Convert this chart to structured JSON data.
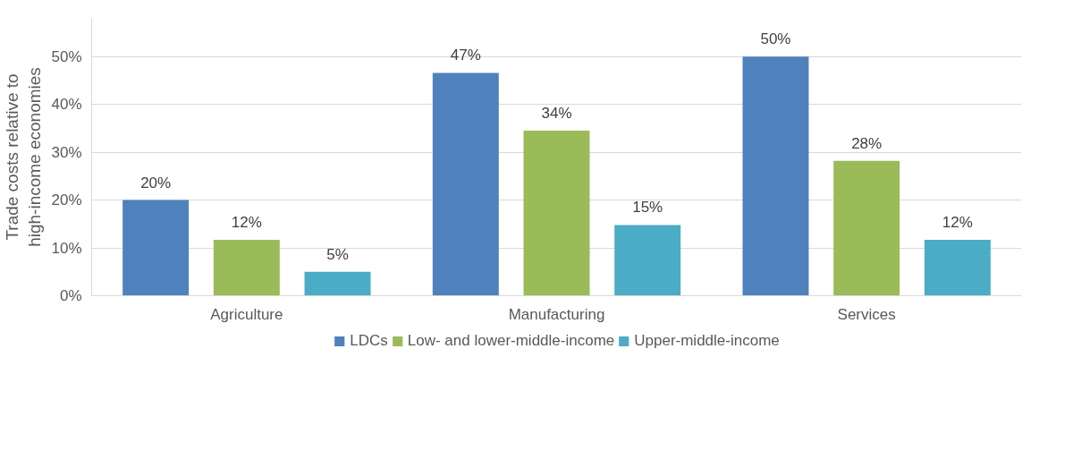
{
  "chart_data": {
    "type": "bar",
    "ylabel": "Trade costs relative to high-income economies",
    "categories": [
      "Agriculture",
      "Manufacturing",
      "Services"
    ],
    "series": [
      {
        "name": "LDCs",
        "color": "#4f81bd",
        "values": [
          20,
          46.6,
          50
        ],
        "value_labels": [
          "20%",
          "47%",
          "50%"
        ]
      },
      {
        "name": "Low- and lower-middle-income",
        "color": "#9bbb59",
        "values": [
          11.7,
          34.5,
          28.2
        ],
        "value_labels": [
          "12%",
          "34%",
          "28%"
        ]
      },
      {
        "name": "Upper-middle-income",
        "color": "#4bacc6",
        "values": [
          5,
          14.8,
          11.7
        ],
        "value_labels": [
          "5%",
          "15%",
          "12%"
        ]
      }
    ],
    "ylim": [
      0,
      58
    ],
    "yticks": [
      {
        "value": 0,
        "label": "0%"
      },
      {
        "value": 10,
        "label": "10%"
      },
      {
        "value": 20,
        "label": "20%"
      },
      {
        "value": 30,
        "label": "30%"
      },
      {
        "value": 40,
        "label": "40%"
      },
      {
        "value": 50,
        "label": "50%"
      }
    ],
    "grid": "y",
    "legend": "bottom"
  }
}
